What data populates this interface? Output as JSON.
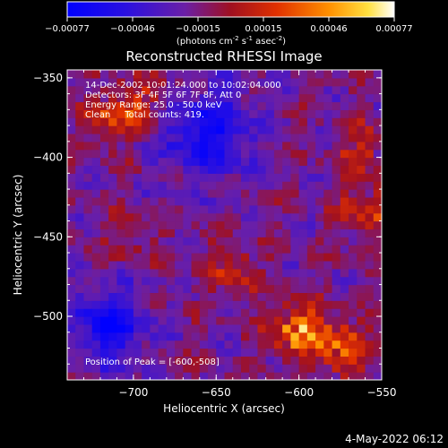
{
  "colorbar": {
    "ticks": [
      "-0.00077",
      "-0.00046",
      "-0.00015",
      "0.00015",
      "0.00046",
      "0.00077"
    ],
    "units_prefix": "(photons cm",
    "units_exp1": "-2",
    "units_mid": " s",
    "units_exp2": "-1",
    "units_mid2": " asec",
    "units_exp3": "-2",
    "units_suffix": ")"
  },
  "title": "Reconstructed RHESSI Image",
  "info_lines": [
    "14-Dec-2002 10:01:24.000 to 10:02:04.000",
    "Detectors: 3F 4F 5F 6F 7F 8F, Att 0",
    "Energy Range: 25.0 - 50.0 keV",
    "Clean     Total counts: 419."
  ],
  "peak_text": "Position of Peak = [-600,-508]",
  "footer_date": "4-May-2022 06:12",
  "colors": {
    "background": "#000000",
    "axis": "#ffffff"
  },
  "chart_data": {
    "type": "heatmap",
    "title": "Reconstructed RHESSI Image",
    "xlabel": "Heliocentric X (arcsec)",
    "ylabel": "Heliocentric Y (arcsec)",
    "xlim": [
      -740,
      -550
    ],
    "ylim": [
      -540,
      -345
    ],
    "x_ticks": [
      -700,
      -650,
      -600,
      -550
    ],
    "x_tick_labels": [
      "−700",
      "−650",
      "−600",
      "−550"
    ],
    "y_ticks": [
      -350,
      -400,
      -450,
      -500
    ],
    "y_tick_labels": [
      "−350",
      "−400",
      "−450",
      "−500"
    ],
    "color_range": [
      -0.00077,
      0.00077
    ],
    "colormap": [
      "#0000ff",
      "#6b1fa6",
      "#b01010",
      "#ff3b00",
      "#ff9a00",
      "#ffff60",
      "#ffffff"
    ],
    "peak": [
      -600,
      -508
    ],
    "hot_regions": [
      {
        "x": -712,
        "y": -373,
        "value": 0.0005
      },
      {
        "x": -690,
        "y": -365,
        "value": 0.00035
      },
      {
        "x": -560,
        "y": -395,
        "value": 0.0004
      },
      {
        "x": -560,
        "y": -432,
        "value": 0.00045
      },
      {
        "x": -640,
        "y": -470,
        "value": 0.0004
      },
      {
        "x": -600,
        "y": -508,
        "value": 0.00077
      },
      {
        "x": -575,
        "y": -520,
        "value": 0.00065
      },
      {
        "x": -700,
        "y": -450,
        "value": 0.0002
      }
    ]
  }
}
